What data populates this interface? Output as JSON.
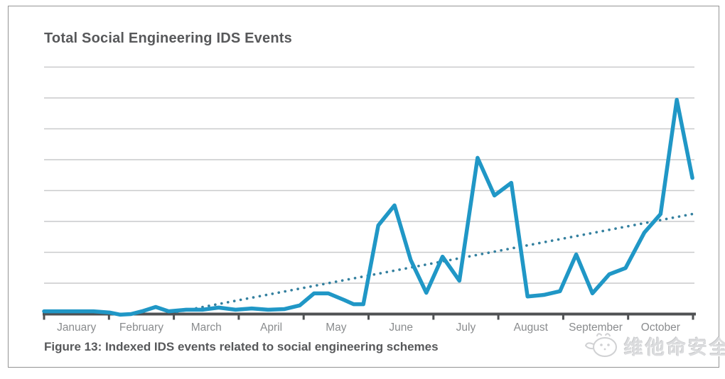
{
  "caption": "Figure 13: Indexed IDS events related to social engineering schemes",
  "watermark": {
    "text": "维他命安全",
    "icon": "mascot-face-icon"
  },
  "colors": {
    "line": "#2097c6",
    "trend": "#34809f",
    "axis": "#4f5153",
    "gridline": "#c9cacc",
    "title_text": "#57585a",
    "label_text": "#8a8c8e",
    "watermark": "#d0d1d3"
  },
  "chart_data": {
    "type": "line",
    "title": "Total Social Engineering IDS Events",
    "xlabel": "",
    "ylabel": "",
    "categories": [
      "January",
      "February",
      "March",
      "April",
      "May",
      "June",
      "July",
      "August",
      "September",
      "October"
    ],
    "y_axis": {
      "tick_labels_visible": false,
      "gridline_count": 8,
      "ylim": [
        0,
        8
      ],
      "note": "values estimated in gridline units; no numeric labels shown"
    },
    "legend": "none",
    "grid": "horizontal-only",
    "series": [
      {
        "name": "Indexed IDS events",
        "style": "solid",
        "x_unit": "months-from-january-start",
        "points": [
          [
            0.0,
            0.09
          ],
          [
            0.25,
            0.09
          ],
          [
            0.5,
            0.09
          ],
          [
            0.76,
            0.09
          ],
          [
            1.01,
            0.05
          ],
          [
            1.17,
            -0.02
          ],
          [
            1.34,
            0.0
          ],
          [
            1.51,
            0.09
          ],
          [
            1.72,
            0.23
          ],
          [
            1.92,
            0.09
          ],
          [
            2.19,
            0.14
          ],
          [
            2.44,
            0.14
          ],
          [
            2.69,
            0.21
          ],
          [
            2.95,
            0.14
          ],
          [
            3.2,
            0.18
          ],
          [
            3.45,
            0.14
          ],
          [
            3.7,
            0.16
          ],
          [
            3.94,
            0.28
          ],
          [
            4.16,
            0.67
          ],
          [
            4.38,
            0.67
          ],
          [
            4.62,
            0.46
          ],
          [
            4.77,
            0.32
          ],
          [
            4.92,
            0.32
          ],
          [
            5.15,
            2.87
          ],
          [
            5.4,
            3.52
          ],
          [
            5.65,
            1.75
          ],
          [
            5.89,
            0.69
          ],
          [
            6.14,
            1.86
          ],
          [
            6.4,
            1.08
          ],
          [
            6.68,
            5.06
          ],
          [
            6.94,
            3.84
          ],
          [
            7.2,
            4.25
          ],
          [
            7.45,
            0.57
          ],
          [
            7.7,
            0.62
          ],
          [
            7.95,
            0.74
          ],
          [
            8.2,
            1.93
          ],
          [
            8.45,
            0.67
          ],
          [
            8.71,
            1.29
          ],
          [
            8.96,
            1.49
          ],
          [
            9.25,
            2.64
          ],
          [
            9.5,
            3.24
          ],
          [
            9.75,
            6.94
          ],
          [
            9.99,
            4.41
          ]
        ]
      },
      {
        "name": "Trend",
        "style": "dotted",
        "x_unit": "months-from-january-start",
        "points": [
          [
            2.05,
            0.07
          ],
          [
            9.99,
            3.24
          ]
        ]
      }
    ]
  }
}
